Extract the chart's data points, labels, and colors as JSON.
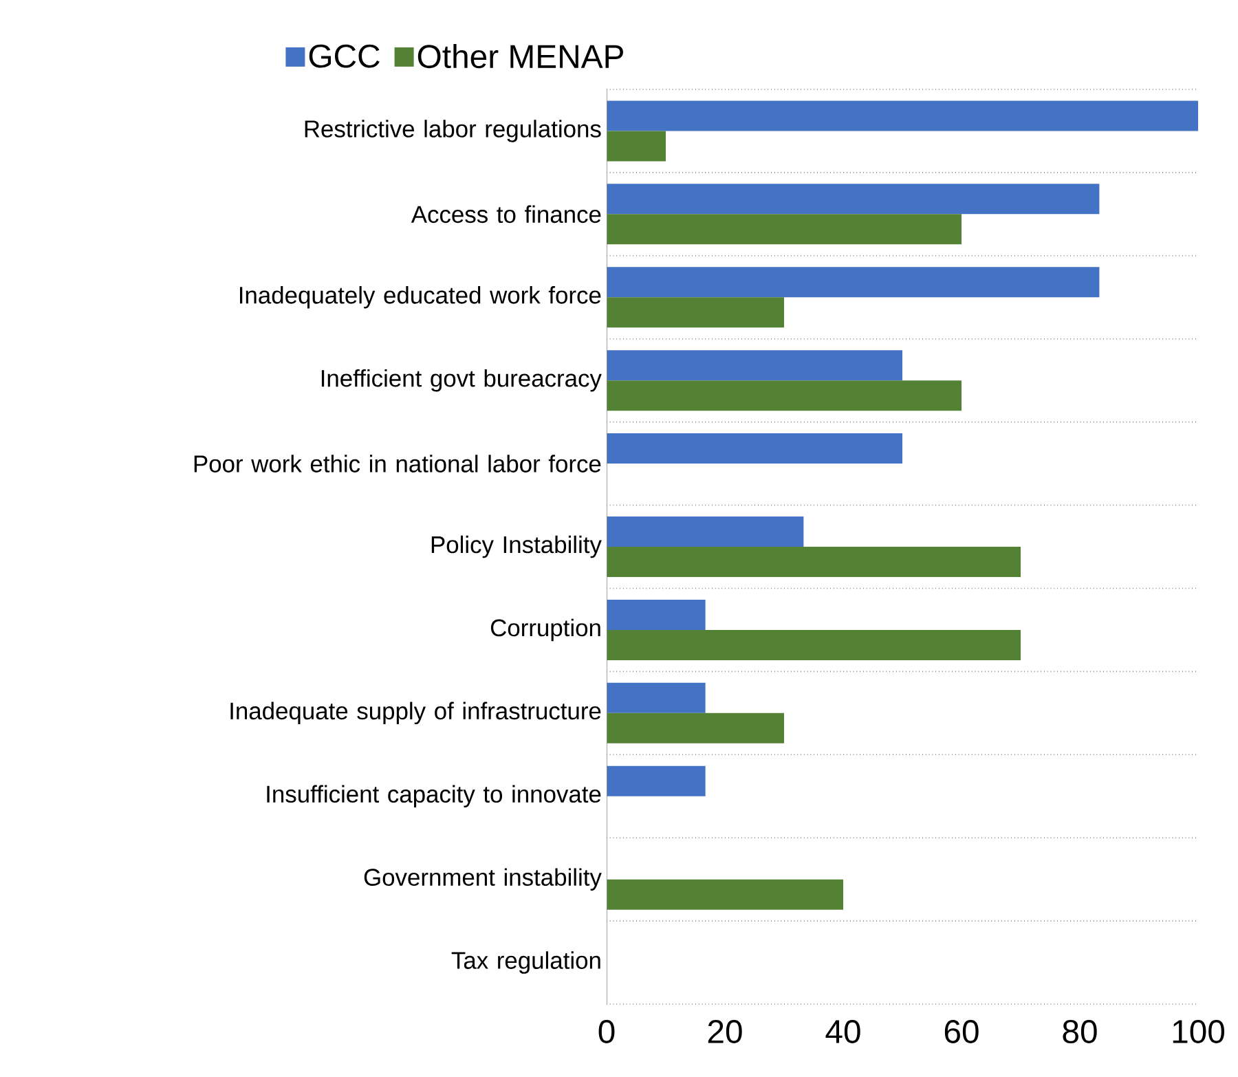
{
  "chart_data": {
    "type": "bar",
    "orientation": "horizontal",
    "legend": "top",
    "grid": "y",
    "categories": [
      "Restrictive labor regulations",
      "Access to finance",
      "Inadequately educated work force",
      "Inefficient govt bureacracy",
      "Poor work ethic in national labor force",
      "Policy Instability",
      "Corruption",
      "Inadequate supply of infrastructure",
      "Insufficient capacity to innovate",
      "Government instability",
      "Tax regulation"
    ],
    "series": [
      {
        "name": "GCC",
        "color": "#4472c4",
        "values": [
          100,
          83.3,
          83.3,
          50,
          50,
          33.3,
          16.7,
          16.7,
          16.7,
          0,
          0
        ]
      },
      {
        "name": "Other MENAP",
        "color": "#548235",
        "values": [
          10,
          60,
          30,
          60,
          0,
          70,
          70,
          30,
          0,
          40,
          0
        ]
      }
    ],
    "xlim": [
      0,
      100
    ],
    "xticks": [
      0,
      20,
      40,
      60,
      80,
      100
    ]
  }
}
